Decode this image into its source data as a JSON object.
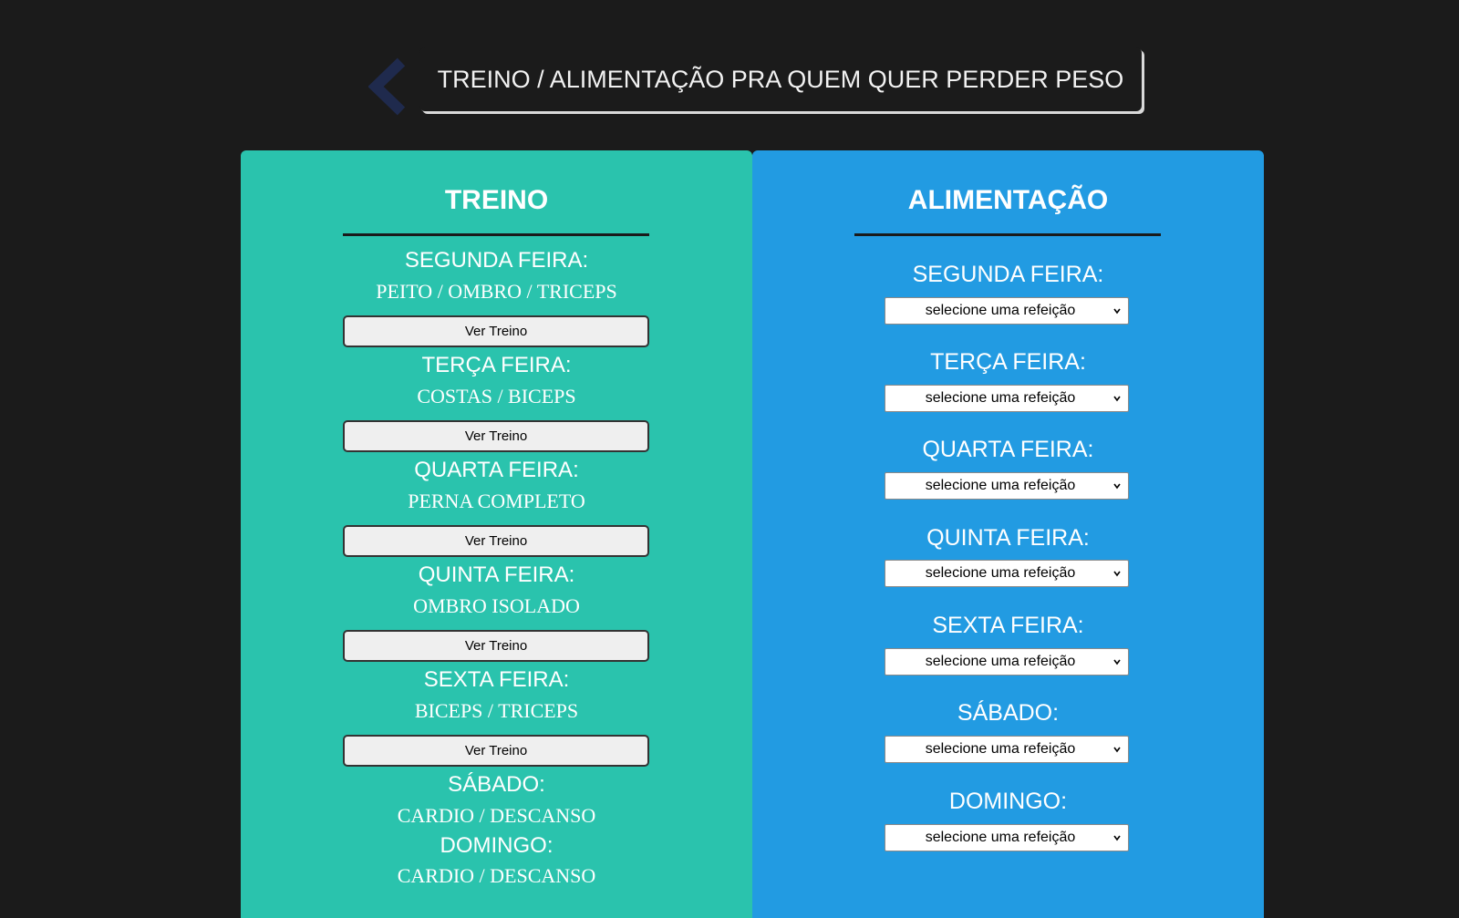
{
  "header": {
    "title": "TREINO / ALIMENTAÇÃO PRA QUEM QUER PERDER PESO",
    "back_icon": "chevron-left-icon"
  },
  "treino": {
    "title": "TREINO",
    "button_label": "Ver Treino",
    "days": [
      {
        "day": "SEGUNDA FEIRA:",
        "workout": "PEITO / OMBRO / TRICEPS"
      },
      {
        "day": "TERÇA FEIRA:",
        "workout": "COSTAS / BICEPS"
      },
      {
        "day": "QUARTA FEIRA:",
        "workout": "PERNA COMPLETO"
      },
      {
        "day": "QUINTA FEIRA:",
        "workout": "OMBRO ISOLADO"
      },
      {
        "day": "SEXTA FEIRA:",
        "workout": "BICEPS / TRICEPS"
      },
      {
        "day": "SÁBADO:",
        "workout": "CARDIO / DESCANSO"
      },
      {
        "day": "DOMINGO:",
        "workout": "CARDIO / DESCANSO"
      }
    ]
  },
  "alimentacao": {
    "title": "ALIMENTAÇÃO",
    "select_value": "selecione uma refeição",
    "days": [
      {
        "day": "SEGUNDA FEIRA:"
      },
      {
        "day": "TERÇA FEIRA:"
      },
      {
        "day": "QUARTA FEIRA:"
      },
      {
        "day": "QUINTA FEIRA:"
      },
      {
        "day": "SEXTA FEIRA:"
      },
      {
        "day": "SÁBADO:"
      },
      {
        "day": "DOMINGO:"
      }
    ]
  },
  "colors": {
    "background": "#1b1b1b",
    "treino_panel": "#2ac3ad",
    "alimentacao_panel": "#229be2",
    "back_chevron": "#1f2a4d"
  }
}
